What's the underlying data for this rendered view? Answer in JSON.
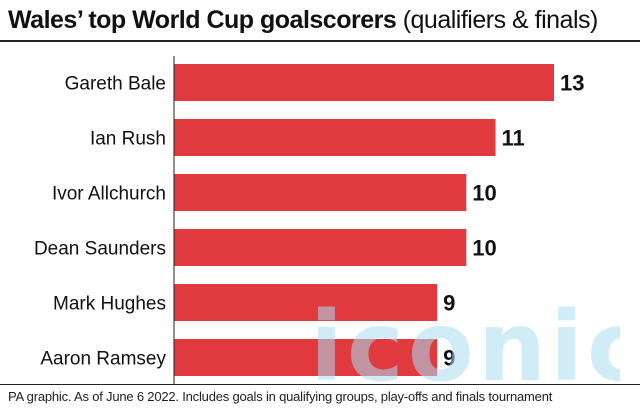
{
  "title": {
    "bold": "Wales’ top World Cup goalscorers",
    "light": "(qualifiers & finals)"
  },
  "footnote": "PA graphic. As of June 6 2022. Includes goals in qualifying groups, play-offs and finals tournament",
  "watermark": {
    "text": "iconic",
    "color": "#a9dcf0"
  },
  "colors": {
    "bar": "#e03a3e",
    "text": "#111111"
  },
  "chart_data": {
    "type": "bar",
    "orientation": "horizontal",
    "categories": [
      "Gareth Bale",
      "Ian Rush",
      "Ivor Allchurch",
      "Dean Saunders",
      "Mark Hughes",
      "Aaron Ramsey"
    ],
    "values": [
      13,
      11,
      10,
      10,
      9,
      9
    ],
    "data_labels": [
      "13",
      "11",
      "10",
      "10",
      "9",
      "9"
    ],
    "xlim": [
      0,
      13
    ],
    "grid": false,
    "legend": "none"
  }
}
